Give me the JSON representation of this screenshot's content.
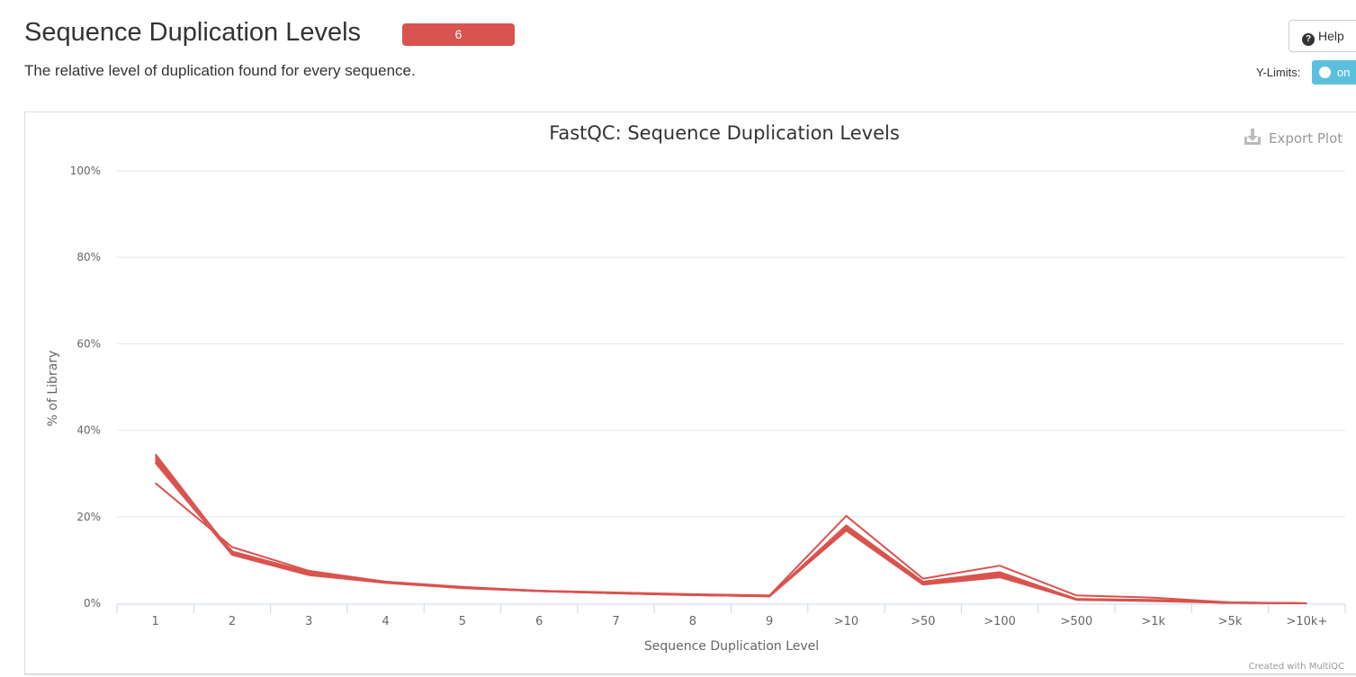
{
  "header": {
    "title": "Sequence Duplication Levels",
    "badge": "6",
    "description": "The relative level of duplication found for every sequence.",
    "help_label": "Help",
    "ylimits_label": "Y-Limits:",
    "toggle_label": "on"
  },
  "plot": {
    "export_label": "Export Plot",
    "credit": "Created with MultiQC"
  },
  "colors": {
    "series": "#d9534f",
    "badge": "#d9534f",
    "toggle": "#5bc0de"
  },
  "chart_data": {
    "type": "line",
    "title": "FastQC: Sequence Duplication Levels",
    "xlabel": "Sequence Duplication Level",
    "ylabel": "% of Library",
    "categories": [
      "1",
      "2",
      "3",
      "4",
      "5",
      "6",
      "7",
      "8",
      "9",
      ">10",
      ">50",
      ">100",
      ">500",
      ">1k",
      ">5k",
      ">10k+"
    ],
    "y_ticks": [
      "0%",
      "20%",
      "40%",
      "60%",
      "80%",
      "100%"
    ],
    "ylim": [
      0,
      100
    ],
    "grid": true,
    "series": [
      {
        "values": [
          34.5,
          11.5,
          6.8,
          4.8,
          3.6,
          2.8,
          2.3,
          1.9,
          1.6,
          17.0,
          4.5,
          6.2,
          0.8,
          0.5,
          0.1,
          0.0
        ]
      },
      {
        "values": [
          33.5,
          11.8,
          7.0,
          4.9,
          3.7,
          2.9,
          2.4,
          2.0,
          1.7,
          17.5,
          4.8,
          6.8,
          0.9,
          0.6,
          0.1,
          0.0
        ]
      },
      {
        "values": [
          33.0,
          12.0,
          7.2,
          5.0,
          3.7,
          2.9,
          2.4,
          2.0,
          1.7,
          18.0,
          5.0,
          7.2,
          1.0,
          0.7,
          0.1,
          0.0
        ]
      },
      {
        "values": [
          32.5,
          11.2,
          6.5,
          4.7,
          3.5,
          2.8,
          2.3,
          1.9,
          1.6,
          16.8,
          4.3,
          6.0,
          0.9,
          0.6,
          0.1,
          0.0
        ]
      },
      {
        "values": [
          34.0,
          11.6,
          6.9,
          4.8,
          3.6,
          2.8,
          2.3,
          1.9,
          1.6,
          17.3,
          4.6,
          6.5,
          1.0,
          0.8,
          0.2,
          0.0
        ]
      },
      {
        "values": [
          27.8,
          13.0,
          7.5,
          5.0,
          3.8,
          2.9,
          2.5,
          2.1,
          1.8,
          20.2,
          5.7,
          8.7,
          1.8,
          1.3,
          0.2,
          0.0
        ]
      }
    ]
  }
}
